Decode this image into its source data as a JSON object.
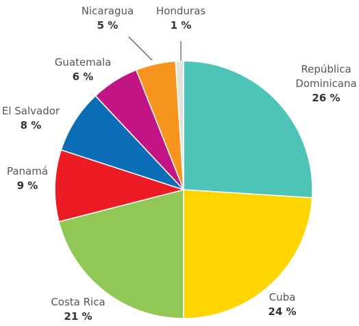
{
  "chart_data": {
    "type": "pie",
    "title": "",
    "start": "12 o'clock",
    "direction": "clockwise",
    "slices": [
      {
        "label": "República Dominicana",
        "label_lines": [
          "República",
          "Dominicana"
        ],
        "value": 26,
        "value_label": "26 %",
        "color": "#4ec3b7"
      },
      {
        "label": "Cuba",
        "label_lines": [
          "Cuba"
        ],
        "value": 24,
        "value_label": "24 %",
        "color": "#ffd500"
      },
      {
        "label": "Costa Rica",
        "label_lines": [
          "Costa Rica"
        ],
        "value": 21,
        "value_label": "21 %",
        "color": "#91c855"
      },
      {
        "label": "Panamá",
        "label_lines": [
          "Panamá"
        ],
        "value": 9,
        "value_label": "9 %",
        "color": "#ed1c24"
      },
      {
        "label": "El Salvador",
        "label_lines": [
          "El Salvador"
        ],
        "value": 8,
        "value_label": "8 %",
        "color": "#0a6db5"
      },
      {
        "label": "Guatemala",
        "label_lines": [
          "Guatemala"
        ],
        "value": 6,
        "value_label": "6 %",
        "color": "#c31485"
      },
      {
        "label": "Nicaragua",
        "label_lines": [
          "Nicaragua"
        ],
        "value": 5,
        "value_label": "5 %",
        "color": "#f7941d"
      },
      {
        "label": "Honduras",
        "label_lines": [
          "Honduras"
        ],
        "value": 1,
        "value_label": "1 %",
        "color": "#e3e3de"
      }
    ]
  }
}
